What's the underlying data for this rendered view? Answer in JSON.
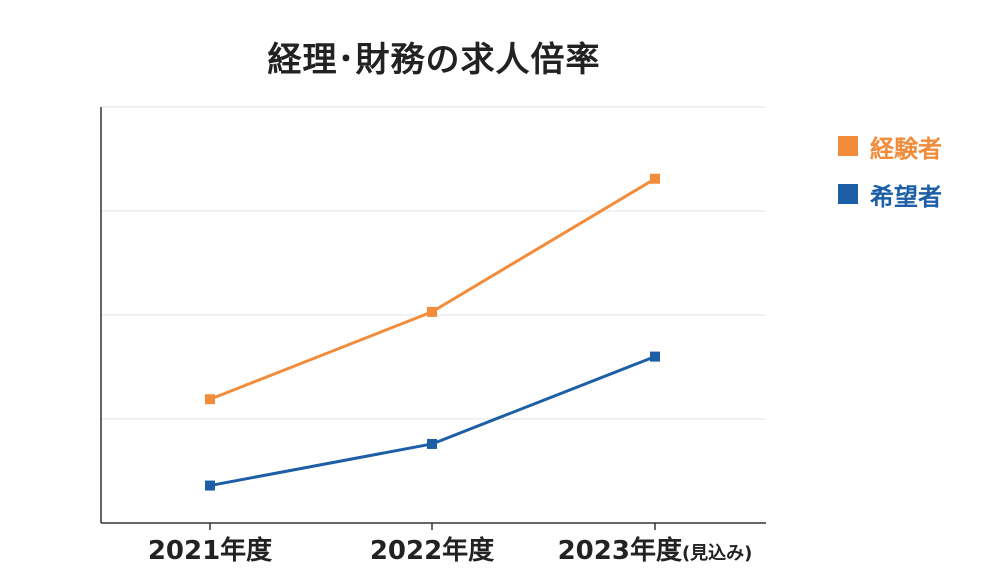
{
  "chart_data": {
    "type": "line",
    "title": "経理･財務の求人倍率",
    "categories": [
      "2021年度",
      "2022年度",
      "2023年度"
    ],
    "category_suffix": [
      "",
      "",
      "(見込み)"
    ],
    "series": [
      {
        "name": "経験者",
        "color": "#f28c3a",
        "values": [
          1.19,
          2.03,
          3.31
        ]
      },
      {
        "name": "希望者",
        "color": "#1d5fa6",
        "values": [
          0.36,
          0.76,
          1.6
        ]
      }
    ],
    "ylim": [
      0,
      4
    ],
    "y_ticks": [
      0,
      1,
      2,
      3,
      4
    ],
    "show_y_tick_labels": false,
    "grid": true,
    "legend_position": "right",
    "xlabel": "",
    "ylabel": ""
  }
}
